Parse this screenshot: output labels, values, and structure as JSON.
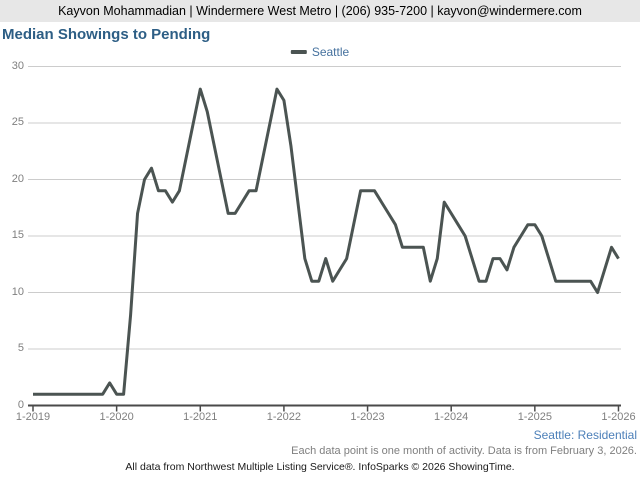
{
  "header": {
    "contact_line": "Kayvon Mohammadian | Windermere West Metro | (206) 935-7200 | kayvon@windermere.com"
  },
  "title": "Median Showings to Pending",
  "legend": {
    "series_label": "Seattle"
  },
  "footer": {
    "market_label": "Seattle: Residential",
    "data_note": "Each data point is one month of activity. Data is from February 3, 2026.",
    "attribution": "All data from Northwest Multiple Listing Service®. InfoSparks © 2026 ShowingTime."
  },
  "colors": {
    "line": "#4b5452",
    "title": "#2d5e85",
    "legend_text": "#45719e",
    "market_text": "#4d80b9",
    "gridline": "#cccccc",
    "axis": "#4a4a4a",
    "tick_text": "#7f7f7f",
    "header_bg": "#e7e7e7"
  },
  "chart_data": {
    "type": "line",
    "title": "Median Showings to Pending",
    "x_start": "1-2019",
    "x_end": "1-2026",
    "months_per_tick": 12,
    "x_tick_labels": [
      "1-2019",
      "1-2020",
      "1-2021",
      "1-2022",
      "1-2023",
      "1-2024",
      "1-2025",
      "1-2026"
    ],
    "y_ticks": [
      0,
      5,
      10,
      15,
      20,
      25,
      30
    ],
    "ylim": [
      0,
      30
    ],
    "grid": "horizontal",
    "legend_position": "top-center",
    "series": [
      {
        "name": "Seattle",
        "values": [
          1,
          1,
          1,
          1,
          1,
          1,
          1,
          1,
          1,
          1,
          1,
          2,
          1,
          1,
          8,
          17,
          20,
          21,
          19,
          19,
          18,
          19,
          22,
          25,
          28,
          26,
          23,
          20,
          17,
          17,
          18,
          19,
          19,
          22,
          25,
          28,
          27,
          23,
          18,
          13,
          11,
          11,
          13,
          11,
          12,
          13,
          16,
          19,
          19,
          19,
          18,
          17,
          16,
          14,
          14,
          14,
          14,
          11,
          13,
          18,
          17,
          16,
          15,
          13,
          11,
          11,
          13,
          13,
          12,
          14,
          15,
          16,
          16,
          15,
          13,
          11,
          11,
          11,
          11,
          11,
          11,
          10,
          12,
          14,
          13
        ]
      }
    ]
  }
}
